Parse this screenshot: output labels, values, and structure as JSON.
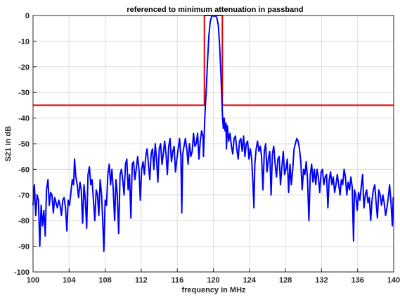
{
  "chart_data": {
    "type": "line",
    "title": "referenced to minimum attenuation in passband",
    "xlabel": "frequency in MHz",
    "ylabel": "S21 in dB",
    "xlim": [
      100,
      140
    ],
    "ylim": [
      -100,
      0
    ],
    "xticks": [
      100,
      104,
      108,
      112,
      116,
      120,
      124,
      128,
      132,
      136,
      140
    ],
    "yticks": [
      0,
      -10,
      -20,
      -30,
      -40,
      -50,
      -60,
      -70,
      -80,
      -90,
      -100
    ],
    "grid": true,
    "colors": {
      "response": "#0000ff",
      "mask": "#e00000",
      "grid": "#dcdcdc",
      "axes": "#262626"
    },
    "series": [
      {
        "role": "tolerance-mask",
        "points": [
          [
            100,
            -35
          ],
          [
            119,
            -35
          ],
          [
            119,
            0
          ],
          [
            121,
            0
          ],
          [
            121,
            -35
          ],
          [
            140,
            -35
          ]
        ]
      },
      {
        "role": "filter-response",
        "points": [
          [
            100.0,
            -74
          ],
          [
            100.15,
            -66
          ],
          [
            100.3,
            -78
          ],
          [
            100.45,
            -70
          ],
          [
            100.6,
            -72
          ],
          [
            100.75,
            -90
          ],
          [
            100.9,
            -74
          ],
          [
            101.05,
            -82
          ],
          [
            101.2,
            -76
          ],
          [
            101.35,
            -86
          ],
          [
            101.5,
            -68
          ],
          [
            101.65,
            -64
          ],
          [
            101.8,
            -74
          ],
          [
            101.95,
            -69
          ],
          [
            102.1,
            -70
          ],
          [
            102.25,
            -77
          ],
          [
            102.4,
            -71
          ],
          [
            102.55,
            -73
          ],
          [
            102.7,
            -75
          ],
          [
            102.85,
            -72
          ],
          [
            103.0,
            -74
          ],
          [
            103.15,
            -78
          ],
          [
            103.3,
            -72
          ],
          [
            103.45,
            -71
          ],
          [
            103.6,
            -75
          ],
          [
            103.75,
            -84
          ],
          [
            103.9,
            -72
          ],
          [
            104.05,
            -74
          ],
          [
            104.2,
            -69
          ],
          [
            104.35,
            -64
          ],
          [
            104.5,
            -66
          ],
          [
            104.6,
            -56
          ],
          [
            104.75,
            -63
          ],
          [
            104.9,
            -66
          ],
          [
            105.05,
            -71
          ],
          [
            105.2,
            -65
          ],
          [
            105.35,
            -68
          ],
          [
            105.5,
            -81
          ],
          [
            105.65,
            -66
          ],
          [
            105.8,
            -72
          ],
          [
            105.95,
            -83
          ],
          [
            106.1,
            -62
          ],
          [
            106.25,
            -59
          ],
          [
            106.4,
            -66
          ],
          [
            106.55,
            -64
          ],
          [
            106.7,
            -72
          ],
          [
            106.85,
            -80
          ],
          [
            107.0,
            -68
          ],
          [
            107.15,
            -70
          ],
          [
            107.3,
            -78
          ],
          [
            107.45,
            -64
          ],
          [
            107.6,
            -70
          ],
          [
            107.75,
            -82
          ],
          [
            107.85,
            -92
          ],
          [
            108.0,
            -72
          ],
          [
            108.15,
            -74
          ],
          [
            108.3,
            -62
          ],
          [
            108.45,
            -58
          ],
          [
            108.6,
            -66
          ],
          [
            108.75,
            -60
          ],
          [
            108.9,
            -68
          ],
          [
            109.05,
            -80
          ],
          [
            109.2,
            -64
          ],
          [
            109.35,
            -70
          ],
          [
            109.5,
            -85
          ],
          [
            109.65,
            -62
          ],
          [
            109.8,
            -60
          ],
          [
            109.95,
            -64
          ],
          [
            110.1,
            -70
          ],
          [
            110.25,
            -58
          ],
          [
            110.4,
            -56
          ],
          [
            110.55,
            -68
          ],
          [
            110.7,
            -62
          ],
          [
            110.85,
            -79
          ],
          [
            111.0,
            -58
          ],
          [
            111.15,
            -57
          ],
          [
            111.3,
            -64
          ],
          [
            111.45,
            -60
          ],
          [
            111.6,
            -55
          ],
          [
            111.75,
            -60
          ],
          [
            111.9,
            -72
          ],
          [
            112.05,
            -60
          ],
          [
            112.2,
            -57
          ],
          [
            112.35,
            -62
          ],
          [
            112.5,
            -55
          ],
          [
            112.65,
            -52
          ],
          [
            112.8,
            -58
          ],
          [
            112.95,
            -64
          ],
          [
            113.1,
            -54
          ],
          [
            113.25,
            -52
          ],
          [
            113.4,
            -60
          ],
          [
            113.55,
            -50
          ],
          [
            113.7,
            -56
          ],
          [
            113.85,
            -65
          ],
          [
            114.0,
            -52
          ],
          [
            114.15,
            -50
          ],
          [
            114.3,
            -58
          ],
          [
            114.45,
            -54
          ],
          [
            114.6,
            -49
          ],
          [
            114.75,
            -54
          ],
          [
            114.9,
            -62
          ],
          [
            115.05,
            -51
          ],
          [
            115.2,
            -48
          ],
          [
            115.35,
            -57
          ],
          [
            115.5,
            -53
          ],
          [
            115.65,
            -51
          ],
          [
            115.8,
            -61
          ],
          [
            115.95,
            -56
          ],
          [
            116.1,
            -52
          ],
          [
            116.25,
            -48
          ],
          [
            116.4,
            -55
          ],
          [
            116.5,
            -77
          ],
          [
            116.6,
            -54
          ],
          [
            116.75,
            -51
          ],
          [
            116.9,
            -48
          ],
          [
            117.05,
            -52
          ],
          [
            117.2,
            -58
          ],
          [
            117.35,
            -50
          ],
          [
            117.5,
            -55
          ],
          [
            117.65,
            -53
          ],
          [
            117.8,
            -46
          ],
          [
            117.95,
            -51
          ],
          [
            118.1,
            -50
          ],
          [
            118.25,
            -46
          ],
          [
            118.4,
            -56
          ],
          [
            118.55,
            -49
          ],
          [
            118.7,
            -45
          ],
          [
            118.85,
            -47
          ],
          [
            118.9,
            -55
          ],
          [
            119.0,
            -45
          ],
          [
            119.05,
            -40
          ],
          [
            119.2,
            -30
          ],
          [
            119.35,
            -18
          ],
          [
            119.5,
            -8
          ],
          [
            119.65,
            -2.5
          ],
          [
            119.8,
            -0.5
          ],
          [
            119.95,
            0
          ],
          [
            120.1,
            -0.3
          ],
          [
            120.25,
            -0.1
          ],
          [
            120.4,
            -1
          ],
          [
            120.55,
            -4
          ],
          [
            120.7,
            -12
          ],
          [
            120.85,
            -24
          ],
          [
            121.0,
            -38
          ],
          [
            121.1,
            -44
          ],
          [
            121.2,
            -40
          ],
          [
            121.3,
            -45
          ],
          [
            121.4,
            -42
          ],
          [
            121.45,
            -52
          ],
          [
            121.55,
            -43
          ],
          [
            121.7,
            -49
          ],
          [
            121.85,
            -46
          ],
          [
            122.0,
            -51
          ],
          [
            122.15,
            -54
          ],
          [
            122.3,
            -48
          ],
          [
            122.45,
            -47
          ],
          [
            122.6,
            -52
          ],
          [
            122.75,
            -56
          ],
          [
            122.9,
            -49
          ],
          [
            123.05,
            -48
          ],
          [
            123.2,
            -53
          ],
          [
            123.35,
            -47
          ],
          [
            123.5,
            -55
          ],
          [
            123.65,
            -50
          ],
          [
            123.8,
            -49
          ],
          [
            123.95,
            -56
          ],
          [
            124.1,
            -52
          ],
          [
            124.25,
            -56
          ],
          [
            124.4,
            -66
          ],
          [
            124.5,
            -75
          ],
          [
            124.6,
            -58
          ],
          [
            124.75,
            -52
          ],
          [
            124.9,
            -49
          ],
          [
            125.05,
            -53
          ],
          [
            125.2,
            -51
          ],
          [
            125.35,
            -55
          ],
          [
            125.5,
            -68
          ],
          [
            125.65,
            -53
          ],
          [
            125.8,
            -50
          ],
          [
            125.95,
            -61
          ],
          [
            126.1,
            -56
          ],
          [
            126.25,
            -53
          ],
          [
            126.4,
            -70
          ],
          [
            126.55,
            -54
          ],
          [
            126.7,
            -51
          ],
          [
            126.85,
            -58
          ],
          [
            127.0,
            -63
          ],
          [
            127.15,
            -56
          ],
          [
            127.3,
            -55
          ],
          [
            127.45,
            -66
          ],
          [
            127.6,
            -59
          ],
          [
            127.75,
            -53
          ],
          [
            127.9,
            -62
          ],
          [
            128.05,
            -60
          ],
          [
            128.2,
            -56
          ],
          [
            128.35,
            -69
          ],
          [
            128.5,
            -58
          ],
          [
            128.65,
            -66
          ],
          [
            128.8,
            -60
          ],
          [
            128.95,
            -52
          ],
          [
            129.1,
            -50
          ],
          [
            129.25,
            -48
          ],
          [
            129.4,
            -49
          ],
          [
            129.55,
            -52
          ],
          [
            129.7,
            -57
          ],
          [
            129.85,
            -68
          ],
          [
            130.0,
            -60
          ],
          [
            130.15,
            -62
          ],
          [
            130.3,
            -57
          ],
          [
            130.45,
            -64
          ],
          [
            130.6,
            -80
          ],
          [
            130.75,
            -62
          ],
          [
            130.9,
            -58
          ],
          [
            131.05,
            -65
          ],
          [
            131.2,
            -60
          ],
          [
            131.35,
            -66
          ],
          [
            131.5,
            -60
          ],
          [
            131.65,
            -63
          ],
          [
            131.8,
            -69
          ],
          [
            131.95,
            -61
          ],
          [
            132.1,
            -60
          ],
          [
            132.25,
            -66
          ],
          [
            132.4,
            -63
          ],
          [
            132.55,
            -62
          ],
          [
            132.7,
            -75
          ],
          [
            132.85,
            -64
          ],
          [
            133.0,
            -61
          ],
          [
            133.15,
            -66
          ],
          [
            133.3,
            -63
          ],
          [
            133.45,
            -69
          ],
          [
            133.6,
            -66
          ],
          [
            133.75,
            -62
          ],
          [
            133.9,
            -66
          ],
          [
            134.05,
            -70
          ],
          [
            134.2,
            -64
          ],
          [
            134.35,
            -66
          ],
          [
            134.5,
            -60
          ],
          [
            134.65,
            -63
          ],
          [
            134.8,
            -70
          ],
          [
            134.95,
            -65
          ],
          [
            135.1,
            -68
          ],
          [
            135.25,
            -63
          ],
          [
            135.4,
            -67
          ],
          [
            135.55,
            -88
          ],
          [
            135.65,
            -68
          ],
          [
            135.8,
            -70
          ],
          [
            135.95,
            -76
          ],
          [
            136.1,
            -69
          ],
          [
            136.25,
            -72
          ],
          [
            136.4,
            -67
          ],
          [
            136.55,
            -62
          ],
          [
            136.7,
            -75
          ],
          [
            136.85,
            -70
          ],
          [
            137.0,
            -68
          ],
          [
            137.15,
            -73
          ],
          [
            137.3,
            -71
          ],
          [
            137.45,
            -80
          ],
          [
            137.6,
            -72
          ],
          [
            137.75,
            -68
          ],
          [
            137.9,
            -66
          ],
          [
            138.05,
            -73
          ],
          [
            138.2,
            -79
          ],
          [
            138.35,
            -68
          ],
          [
            138.5,
            -70
          ],
          [
            138.65,
            -74
          ],
          [
            138.8,
            -70
          ],
          [
            138.95,
            -73
          ],
          [
            139.1,
            -78
          ],
          [
            139.25,
            -75
          ],
          [
            139.4,
            -71
          ],
          [
            139.55,
            -66
          ],
          [
            139.7,
            -73
          ],
          [
            139.85,
            -82
          ],
          [
            139.95,
            -71
          ],
          [
            140.0,
            -72
          ]
        ]
      }
    ]
  }
}
